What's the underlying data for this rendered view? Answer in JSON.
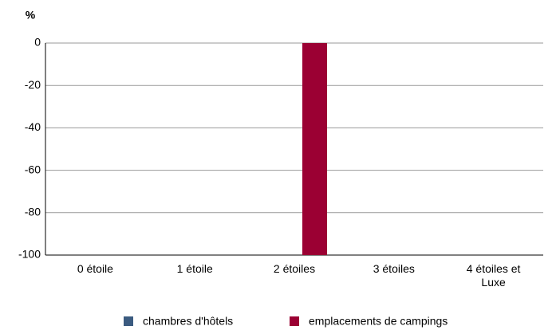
{
  "chart_data": {
    "type": "bar",
    "y_label": "%",
    "categories": [
      "0 étoile",
      "1 étoile",
      "2 étoiles",
      "3 étoiles",
      "4 étoiles et Luxe"
    ],
    "series": [
      {
        "name": "chambres d'hôtels",
        "color": "#3b5b80",
        "values": [
          0,
          0,
          0,
          0,
          0
        ]
      },
      {
        "name": "emplacements de campings",
        "color": "#9b0033",
        "values": [
          0,
          0,
          -100,
          0,
          0
        ]
      }
    ],
    "ylim": [
      -100,
      0
    ],
    "yticks": [
      0,
      -20,
      -40,
      -60,
      -80,
      -100
    ],
    "grid": true,
    "legend": "bottom"
  }
}
